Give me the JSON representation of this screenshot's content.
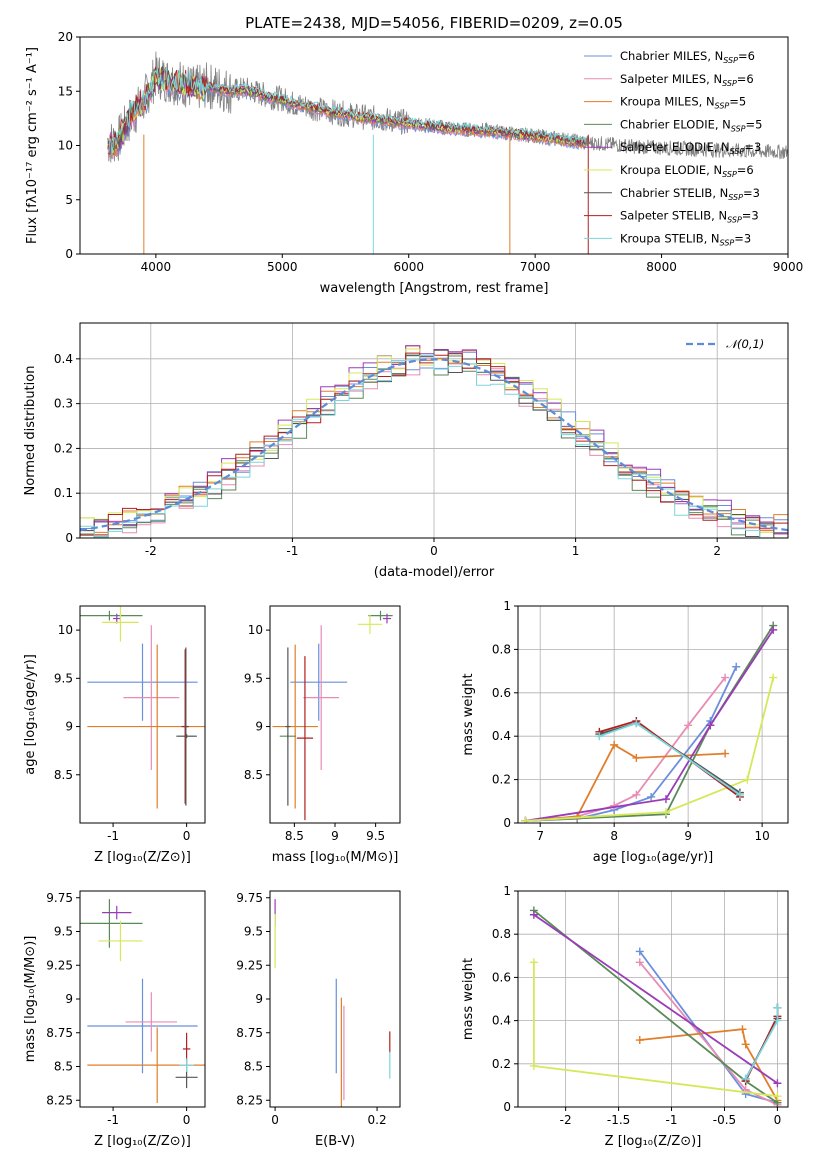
{
  "colors": {
    "Chabrier MILES": "#6a8fdc",
    "Salpeter MILES": "#e88cb4",
    "Kroupa MILES": "#e07e2a",
    "Chabrier ELODIE": "#5a8a5a",
    "Salpeter ELODIE": "#9a3cb8",
    "Kroupa ELODIE": "#d6e85a",
    "Chabrier STELIB": "#555555",
    "Salpeter STELIB": "#b02020",
    "Kroupa STELIB": "#7ad6dc"
  },
  "chart_data": [
    {
      "id": "spectrum",
      "type": "line",
      "title": "PLATE=2438, MJD=54056, FIBERID=0209, z=0.05",
      "xlabel": "wavelength [Angstrom, rest frame]",
      "ylabel": "Flux [fλ10⁻¹⁷ erg cm⁻² s⁻¹ A⁻¹]",
      "xlim": [
        3400,
        9000
      ],
      "ylim": [
        0,
        20
      ],
      "xticks": [
        4000,
        5000,
        6000,
        7000,
        8000,
        9000
      ],
      "yticks": [
        0,
        5,
        10,
        15,
        20
      ],
      "legend_position": "upper-right",
      "legend": [
        "Chabrier MILES, N_SSP=6",
        "Salpeter MILES, N_SSP=6",
        "Kroupa MILES, N_SSP=5",
        "Chabrier ELODIE, N_SSP=5",
        "Salpeter ELODIE, N_SSP=3",
        "Kroupa ELODIE, N_SSP=6",
        "Chabrier STELIB, N_SSP=3",
        "Salpeter STELIB, N_SSP=3",
        "Kroupa STELIB, N_SSP=3"
      ],
      "data_series": {
        "name": "data",
        "color": "#808080",
        "x": [
          3620,
          3700,
          3800,
          3900,
          4000,
          4100,
          4200,
          4300,
          4400,
          4500,
          4600,
          4700,
          4800,
          4900,
          5000,
          5100,
          5200,
          5300,
          5400,
          5500,
          5600,
          5800,
          6000,
          6200,
          6400,
          6600,
          6800,
          7000,
          7200,
          7400,
          7600,
          7800,
          8000,
          8200,
          8400,
          8600,
          8800,
          9000
        ],
        "y": [
          10.2,
          10.5,
          12.5,
          14.0,
          16.5,
          16.0,
          15.8,
          15.2,
          15.5,
          15.3,
          15.0,
          15.2,
          14.9,
          14.5,
          14.3,
          13.8,
          13.6,
          13.3,
          13.1,
          12.9,
          12.7,
          12.4,
          12.1,
          11.8,
          11.5,
          11.4,
          11.1,
          10.9,
          10.6,
          10.3,
          10.1,
          9.9,
          9.8,
          9.7,
          9.6,
          9.5,
          9.45,
          9.4
        ]
      },
      "model_series": {
        "name": "Kroupa STELIB",
        "x": [
          3620,
          3700,
          3800,
          3900,
          4000,
          4100,
          4200,
          4300,
          4400,
          4500,
          4600,
          4700,
          4800,
          4900,
          5000,
          5100,
          5200,
          5300,
          5400,
          5500,
          5600,
          5800,
          6000,
          6200,
          6400,
          6600,
          6800,
          7000,
          7200,
          7400
        ],
        "y": [
          10.0,
          10.3,
          12.8,
          13.8,
          16.2,
          15.8,
          15.6,
          15.3,
          15.4,
          15.1,
          15.0,
          15.1,
          14.8,
          14.4,
          14.2,
          13.8,
          13.6,
          13.3,
          13.0,
          12.9,
          12.6,
          12.3,
          12.0,
          11.7,
          11.5,
          11.3,
          11.1,
          10.8,
          10.5,
          10.2
        ]
      }
    },
    {
      "id": "residuals",
      "type": "line",
      "xlabel": "(data-model)/error",
      "ylabel": "Normed distribution",
      "xlim": [
        -2.5,
        2.5
      ],
      "ylim": [
        0,
        0.48
      ],
      "xticks": [
        -2,
        -1,
        0,
        1,
        2
      ],
      "yticks": [
        0.0,
        0.1,
        0.2,
        0.3,
        0.4
      ],
      "legend_position": "upper-right",
      "legend": [
        "𝒩(0,1)"
      ],
      "series": [
        {
          "name": "Chabrier MILES",
          "offset": 0.004
        },
        {
          "name": "Salpeter MILES",
          "offset": -0.006
        },
        {
          "name": "Kroupa MILES",
          "offset": 0.01
        },
        {
          "name": "Chabrier ELODIE",
          "offset": -0.01
        },
        {
          "name": "Salpeter ELODIE",
          "offset": 0.014
        },
        {
          "name": "Kroupa ELODIE",
          "offset": 0.008
        },
        {
          "name": "Chabrier STELIB",
          "offset": -0.004
        },
        {
          "name": "Salpeter STELIB",
          "offset": 0.002
        },
        {
          "name": "Kroupa STELIB",
          "offset": -0.012
        }
      ]
    },
    {
      "id": "age-vs-Z",
      "type": "scatter",
      "xlabel": "Z [log₁₀(Z/Z⊙)]",
      "ylabel": "age [log₁₀(age/yr)]",
      "xlim": [
        -1.45,
        0.25
      ],
      "ylim": [
        8.0,
        10.25
      ],
      "xticks": [
        -1,
        0
      ],
      "yticks": [
        8.5,
        9.0,
        9.5,
        10.0
      ],
      "points": [
        {
          "name": "Kroupa STELIB",
          "x": 0.0,
          "y": 8.9,
          "xerr": 0.12,
          "yerr": 0.02
        },
        {
          "name": "Chabrier STELIB",
          "x": 0.0,
          "y": 8.9,
          "xerr": 0.14,
          "yerr": 0.02
        },
        {
          "name": "Chabrier ELODIE",
          "x": -1.05,
          "y": 10.15,
          "xerr": 0.45,
          "yerr": 0.05
        },
        {
          "name": "Salpeter ELODIE",
          "x": -0.95,
          "y": 10.12,
          "xerr": 0.05,
          "yerr": 0.05
        },
        {
          "name": "Kroupa ELODIE",
          "x": -0.9,
          "y": 10.08,
          "xerr": 0.25,
          "yerr": 0.2
        },
        {
          "name": "Chabrier MILES",
          "x": -0.6,
          "y": 9.46,
          "xerr": 0.75,
          "yerr": 0.4
        },
        {
          "name": "Salpeter MILES",
          "x": -0.48,
          "y": 9.3,
          "xerr": 0.38,
          "yerr": 0.75
        },
        {
          "name": "Kroupa MILES",
          "x": -0.4,
          "y": 9.0,
          "xerr": 0.95,
          "yerr": 0.85
        },
        {
          "name": "Salpeter STELIB",
          "x": -0.02,
          "y": 9.0,
          "xerr": 0.05,
          "yerr": 0.8
        },
        {
          "name": "Chabrier STELIB",
          "x": -0.01,
          "y": 9.0,
          "xerr": 0.03,
          "yerr": 0.82
        }
      ]
    },
    {
      "id": "age-vs-mass",
      "type": "scatter",
      "xlabel": "mass [log₁₀(M/M⊙)]",
      "ylabel": "",
      "xlim": [
        8.2,
        9.8
      ],
      "ylim": [
        8.0,
        10.25
      ],
      "xticks": [
        8.5,
        9.0,
        9.5
      ],
      "yticks": [
        8.5,
        9.0,
        9.5,
        10.0
      ],
      "points": [
        {
          "name": "Chabrier MILES",
          "x": 8.8,
          "y": 9.46,
          "xerr": 0.35,
          "yerr": 0.4
        },
        {
          "name": "Salpeter MILES",
          "x": 8.83,
          "y": 9.3,
          "xerr": 0.22,
          "yerr": 0.75
        },
        {
          "name": "Kroupa MILES",
          "x": 8.51,
          "y": 9.0,
          "xerr": 0.28,
          "yerr": 0.85
        },
        {
          "name": "Chabrier ELODIE",
          "x": 8.42,
          "y": 8.9,
          "xerr": 0.1,
          "yerr": 0.02
        },
        {
          "name": "Salpeter STELIB",
          "x": 8.63,
          "y": 8.88,
          "xerr": 0.1,
          "yerr": 0.85
        },
        {
          "name": "Chabrier STELIB",
          "x": 8.42,
          "y": 9.0,
          "xerr": 0.03,
          "yerr": 0.82
        },
        {
          "name": "Chabrier ELODIE",
          "x": 9.56,
          "y": 10.15,
          "xerr": 0.15,
          "yerr": 0.05
        },
        {
          "name": "Salpeter ELODIE",
          "x": 9.64,
          "y": 10.12,
          "xerr": 0.05,
          "yerr": 0.05
        },
        {
          "name": "Kroupa ELODIE",
          "x": 9.43,
          "y": 10.06,
          "xerr": 0.15,
          "yerr": 0.1
        }
      ]
    },
    {
      "id": "massweight-vs-age",
      "type": "line",
      "xlabel": "age [log₁₀(age/yr)]",
      "ylabel": "mass weight",
      "xlim": [
        6.7,
        10.35
      ],
      "ylim": [
        0,
        1.0
      ],
      "xticks": [
        7,
        8,
        9,
        10
      ],
      "yticks": [
        0.0,
        0.2,
        0.4,
        0.6,
        0.8,
        1.0
      ],
      "series": [
        {
          "name": "Chabrier MILES",
          "x": [
            6.8,
            7.5,
            8.0,
            8.5,
            9.3,
            9.65
          ],
          "y": [
            0.01,
            0.02,
            0.06,
            0.12,
            0.47,
            0.72
          ]
        },
        {
          "name": "Salpeter MILES",
          "x": [
            6.8,
            7.5,
            8.0,
            8.3,
            9.0,
            9.5
          ],
          "y": [
            0.01,
            0.03,
            0.08,
            0.13,
            0.45,
            0.67
          ]
        },
        {
          "name": "Kroupa MILES",
          "x": [
            6.8,
            7.5,
            8.0,
            8.3,
            9.5
          ],
          "y": [
            0.01,
            0.03,
            0.36,
            0.3,
            0.32
          ]
        },
        {
          "name": "Chabrier ELODIE",
          "x": [
            6.8,
            8.7,
            9.3,
            10.15
          ],
          "y": [
            0.01,
            0.04,
            0.45,
            0.91
          ]
        },
        {
          "name": "Salpeter ELODIE",
          "x": [
            6.8,
            8.7,
            9.3,
            10.15
          ],
          "y": [
            0.01,
            0.11,
            0.45,
            0.89
          ]
        },
        {
          "name": "Kroupa ELODIE",
          "x": [
            6.8,
            8.7,
            9.8,
            10.15
          ],
          "y": [
            0.01,
            0.05,
            0.2,
            0.67
          ]
        },
        {
          "name": "Chabrier STELIB",
          "x": [
            7.8,
            8.3,
            9.7
          ],
          "y": [
            0.41,
            0.46,
            0.14
          ]
        },
        {
          "name": "Salpeter STELIB",
          "x": [
            7.8,
            8.3,
            9.7
          ],
          "y": [
            0.42,
            0.47,
            0.12
          ]
        },
        {
          "name": "Kroupa STELIB",
          "x": [
            7.8,
            8.3,
            9.7
          ],
          "y": [
            0.4,
            0.46,
            0.13
          ]
        }
      ]
    },
    {
      "id": "mass-vs-Z",
      "type": "scatter",
      "xlabel": "Z [log₁₀(Z/Z⊙)]",
      "ylabel": "mass [log₁₀(M/M⊙)]",
      "xlim": [
        -1.45,
        0.25
      ],
      "ylim": [
        8.2,
        9.8
      ],
      "xticks": [
        -1,
        0
      ],
      "yticks": [
        8.25,
        8.5,
        8.75,
        9.0,
        9.25,
        9.5,
        9.75
      ],
      "points": [
        {
          "name": "Chabrier ELODIE",
          "x": -1.05,
          "y": 9.56,
          "xerr": 0.45,
          "yerr": 0.18
        },
        {
          "name": "Salpeter ELODIE",
          "x": -0.95,
          "y": 9.64,
          "xerr": 0.2,
          "yerr": 0.05
        },
        {
          "name": "Kroupa ELODIE",
          "x": -0.9,
          "y": 9.43,
          "xerr": 0.3,
          "yerr": 0.15
        },
        {
          "name": "Chabrier MILES",
          "x": -0.6,
          "y": 8.8,
          "xerr": 0.75,
          "yerr": 0.35
        },
        {
          "name": "Salpeter MILES",
          "x": -0.48,
          "y": 8.83,
          "xerr": 0.35,
          "yerr": 0.22
        },
        {
          "name": "Kroupa MILES",
          "x": -0.4,
          "y": 8.51,
          "xerr": 0.95,
          "yerr": 0.28
        },
        {
          "name": "Salpeter STELIB",
          "x": 0.0,
          "y": 8.63,
          "xerr": 0.05,
          "yerr": 0.12
        },
        {
          "name": "Chabrier STELIB",
          "x": 0.0,
          "y": 8.42,
          "xerr": 0.15,
          "yerr": 0.08
        },
        {
          "name": "Kroupa STELIB",
          "x": 0.0,
          "y": 8.51,
          "xerr": 0.1,
          "yerr": 0.05
        }
      ]
    },
    {
      "id": "mass-vs-ebv",
      "type": "scatter",
      "xlabel": "E(B-V)",
      "ylabel": "",
      "xlim": [
        -0.01,
        0.245
      ],
      "ylim": [
        8.2,
        9.8
      ],
      "xticks": [
        0.0,
        0.2
      ],
      "yticks": [
        8.25,
        8.5,
        8.75,
        9.0,
        9.25,
        9.5,
        9.75
      ],
      "points": [
        {
          "name": "Salpeter ELODIE",
          "x": 0.0,
          "y": 9.64,
          "xerr": 0.0,
          "yerr": 0.1
        },
        {
          "name": "Kroupa ELODIE",
          "x": 0.0,
          "y": 9.43,
          "xerr": 0.0,
          "yerr": 0.2
        },
        {
          "name": "Chabrier MILES",
          "x": 0.12,
          "y": 8.8,
          "xerr": 0.0,
          "yerr": 0.35
        },
        {
          "name": "Kroupa MILES",
          "x": 0.13,
          "y": 8.51,
          "xerr": 0.0,
          "yerr": 0.5
        },
        {
          "name": "Salpeter MILES",
          "x": 0.135,
          "y": 8.6,
          "xerr": 0.0,
          "yerr": 0.35
        },
        {
          "name": "Salpeter STELIB",
          "x": 0.225,
          "y": 8.68,
          "xerr": 0.0,
          "yerr": 0.08
        },
        {
          "name": "Kroupa STELIB",
          "x": 0.225,
          "y": 8.51,
          "xerr": 0.0,
          "yerr": 0.1
        }
      ]
    },
    {
      "id": "massweight-vs-Z",
      "type": "line",
      "xlabel": "Z [log₁₀(Z/Z⊙)]",
      "ylabel": "mass weight",
      "xlim": [
        -2.45,
        0.1
      ],
      "ylim": [
        0,
        1.0
      ],
      "xticks": [
        -2.0,
        -1.5,
        -1.0,
        -0.5,
        0.0
      ],
      "yticks": [
        0.0,
        0.2,
        0.4,
        0.6,
        0.8,
        1.0
      ],
      "series": [
        {
          "name": "Chabrier MILES",
          "x": [
            -1.3,
            -0.3,
            0.0
          ],
          "y": [
            0.72,
            0.06,
            0.02
          ]
        },
        {
          "name": "Salpeter MILES",
          "x": [
            -1.3,
            -0.3,
            0.0
          ],
          "y": [
            0.67,
            0.08,
            0.01
          ]
        },
        {
          "name": "Kroupa MILES",
          "x": [
            -1.3,
            -0.33,
            -0.3,
            0.0
          ],
          "y": [
            0.31,
            0.36,
            0.29,
            0.03
          ]
        },
        {
          "name": "Chabrier ELODIE",
          "x": [
            -2.3,
            -0.3,
            0.0
          ],
          "y": [
            0.91,
            0.12,
            0.02
          ]
        },
        {
          "name": "Salpeter ELODIE",
          "x": [
            -2.3,
            0.0
          ],
          "y": [
            0.89,
            0.11
          ]
        },
        {
          "name": "Kroupa ELODIE",
          "x": [
            -2.3,
            -2.3,
            0.0
          ],
          "y": [
            0.67,
            0.19,
            0.05
          ]
        },
        {
          "name": "Chabrier STELIB",
          "x": [
            -0.3,
            0.0,
            0.0
          ],
          "y": [
            0.13,
            0.41,
            0.46
          ]
        },
        {
          "name": "Salpeter STELIB",
          "x": [
            -0.3,
            0.0,
            0.0
          ],
          "y": [
            0.12,
            0.42,
            0.46
          ]
        },
        {
          "name": "Kroupa STELIB",
          "x": [
            -0.3,
            0.0,
            0.0
          ],
          "y": [
            0.13,
            0.4,
            0.46
          ]
        }
      ]
    }
  ]
}
